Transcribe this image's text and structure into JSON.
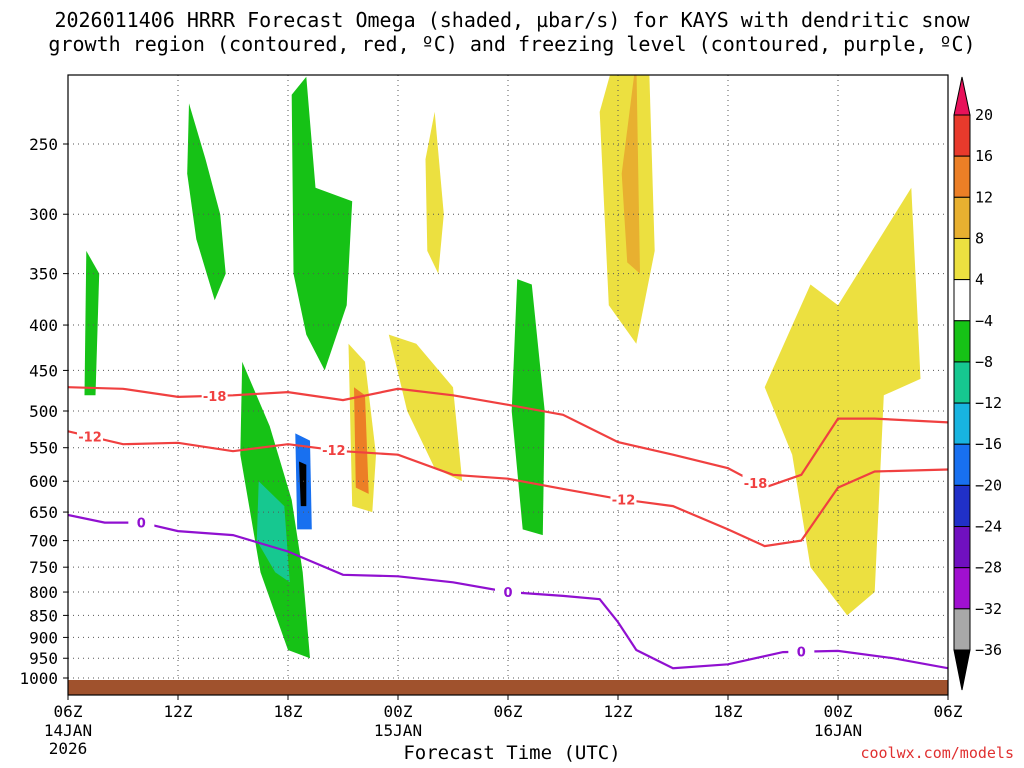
{
  "title_line1": "2026011406 HRRR Forecast Omega (shaded, µbar/s) for KAYS with dendritic snow",
  "title_line2": "growth region (contoured, red, ºC) and freezing level (contoured, purple, ºC)",
  "footer": "coolwx.com/models",
  "chart_data": {
    "type": "heatmap",
    "title": "2026011406 HRRR Forecast Omega (shaded, µbar/s) for KAYS with dendritic snow growth region (contoured, red, ºC) and freezing level (contoured, purple, ºC)",
    "xlabel": "Forecast Time (UTC)",
    "ylabel": "",
    "x_range_hours": [
      0,
      48
    ],
    "x_ticks": [
      {
        "hour": 0,
        "label": "06Z",
        "sub1": "14JAN",
        "sub2": "2026"
      },
      {
        "hour": 6,
        "label": "12Z",
        "sub1": "",
        "sub2": ""
      },
      {
        "hour": 12,
        "label": "18Z",
        "sub1": "",
        "sub2": ""
      },
      {
        "hour": 18,
        "label": "00Z",
        "sub1": "15JAN",
        "sub2": ""
      },
      {
        "hour": 24,
        "label": "06Z",
        "sub1": "",
        "sub2": ""
      },
      {
        "hour": 30,
        "label": "12Z",
        "sub1": "",
        "sub2": ""
      },
      {
        "hour": 36,
        "label": "18Z",
        "sub1": "",
        "sub2": ""
      },
      {
        "hour": 42,
        "label": "00Z",
        "sub1": "16JAN",
        "sub2": ""
      },
      {
        "hour": 48,
        "label": "06Z",
        "sub1": "",
        "sub2": ""
      }
    ],
    "y_ticks": [
      250,
      300,
      350,
      400,
      450,
      500,
      550,
      600,
      650,
      700,
      750,
      800,
      850,
      900,
      950,
      1000
    ],
    "y_range_hPa": [
      200,
      1000
    ],
    "colorbar": {
      "labels": [
        "20",
        "16",
        "12",
        "8",
        "4",
        "−4",
        "−8",
        "−12",
        "−16",
        "−20",
        "−24",
        "−28",
        "−32",
        "−36"
      ],
      "colors": [
        "#e8125a",
        "#e83a2c",
        "#ec7f26",
        "#e8b030",
        "#ece040",
        "#ffffff",
        "#16c216",
        "#16c890",
        "#18b4e0",
        "#1870f0",
        "#2030c8",
        "#7010c0",
        "#a010d0",
        "#a8a8a8",
        "#000000"
      ]
    },
    "dgz_contours": [
      {
        "label": "-18",
        "color": "#f04040",
        "hours": [
          0,
          3,
          6,
          9,
          12,
          15,
          18,
          21,
          24,
          27,
          30,
          33,
          36,
          38,
          40,
          42,
          44,
          48
        ],
        "pressure": [
          470,
          472,
          482,
          480,
          476,
          486,
          472,
          480,
          492,
          505,
          542,
          560,
          580,
          610,
          590,
          510,
          510,
          515
        ]
      },
      {
        "label": "-12",
        "color": "#f04040",
        "hours": [
          0,
          3,
          6,
          9,
          12,
          15,
          18,
          21,
          24,
          27,
          30,
          33,
          36,
          38,
          40,
          42,
          44,
          48
        ],
        "pressure": [
          527,
          545,
          543,
          555,
          545,
          555,
          560,
          590,
          596,
          612,
          628,
          640,
          680,
          710,
          700,
          610,
          585,
          582
        ]
      }
    ],
    "freezing_contour": {
      "label": "0",
      "color": "#9010d0",
      "hours": [
        0,
        2,
        4,
        6,
        9,
        12,
        15,
        18,
        21,
        24,
        27,
        29,
        30,
        31,
        33,
        36,
        39,
        42,
        45,
        48
      ],
      "pressure": [
        655,
        668,
        668,
        683,
        690,
        720,
        765,
        768,
        780,
        800,
        808,
        815,
        865,
        930,
        975,
        965,
        935,
        932,
        950,
        975
      ]
    },
    "omega_regions": [
      {
        "name": "green-upper-12z",
        "value": -6,
        "color": "#16c216",
        "points": [
          [
            6.6,
            225
          ],
          [
            7.5,
            260
          ],
          [
            8.3,
            300
          ],
          [
            8.6,
            350
          ],
          [
            8.0,
            375
          ],
          [
            7.0,
            320
          ],
          [
            6.5,
            270
          ]
        ]
      },
      {
        "name": "green-column-18z",
        "value": -6,
        "color": "#16c216",
        "points": [
          [
            12.2,
            220
          ],
          [
            13.0,
            210
          ],
          [
            13.5,
            280
          ],
          [
            15.5,
            290
          ],
          [
            15.2,
            380
          ],
          [
            14.0,
            450
          ],
          [
            13.0,
            410
          ],
          [
            12.3,
            350
          ]
        ]
      },
      {
        "name": "green-low-15z",
        "value": -8,
        "color": "#16c216",
        "points": [
          [
            9.5,
            440
          ],
          [
            11.0,
            520
          ],
          [
            12.2,
            630
          ],
          [
            12.8,
            760
          ],
          [
            13.2,
            950
          ],
          [
            12.0,
            930
          ],
          [
            10.5,
            760
          ],
          [
            9.4,
            560
          ]
        ]
      },
      {
        "name": "teal-low-16z",
        "value": -12,
        "color": "#16c890",
        "points": [
          [
            10.4,
            600
          ],
          [
            11.8,
            640
          ],
          [
            12.1,
            780
          ],
          [
            11.3,
            760
          ],
          [
            10.3,
            700
          ]
        ]
      },
      {
        "name": "core-18z",
        "value": -20,
        "color": "#1870f0",
        "points": [
          [
            12.4,
            530
          ],
          [
            13.2,
            540
          ],
          [
            13.3,
            680
          ],
          [
            12.5,
            680
          ]
        ]
      },
      {
        "name": "core-dark-18z",
        "value": -36,
        "color": "#000000",
        "points": [
          [
            12.6,
            570
          ],
          [
            13.0,
            575
          ],
          [
            13.0,
            640
          ],
          [
            12.7,
            640
          ]
        ]
      },
      {
        "name": "green-09z",
        "value": -6,
        "color": "#16c216",
        "points": [
          [
            24.5,
            355
          ],
          [
            25.3,
            360
          ],
          [
            26.0,
            500
          ],
          [
            25.9,
            690
          ],
          [
            24.8,
            680
          ],
          [
            24.2,
            500
          ]
        ]
      },
      {
        "name": "green-small",
        "value": -6,
        "color": "#16c216",
        "points": [
          [
            1.0,
            330
          ],
          [
            1.7,
            350
          ],
          [
            1.5,
            480
          ],
          [
            0.9,
            480
          ]
        ]
      },
      {
        "name": "yellow-12z",
        "value": 6,
        "color": "#ece040",
        "points": [
          [
            29.0,
            230
          ],
          [
            31.5,
            150
          ],
          [
            32.0,
            330
          ],
          [
            31.0,
            420
          ],
          [
            29.5,
            380
          ]
        ]
      },
      {
        "name": "orange-12z",
        "value": 10,
        "color": "#e8b030",
        "points": [
          [
            30.2,
            270
          ],
          [
            31.0,
            200
          ],
          [
            31.2,
            350
          ],
          [
            30.5,
            340
          ]
        ]
      },
      {
        "name": "yellow-00z16",
        "value": 6,
        "color": "#ece040",
        "points": [
          [
            38.0,
            470
          ],
          [
            40.5,
            360
          ],
          [
            42.0,
            380
          ],
          [
            46.0,
            280
          ],
          [
            46.5,
            460
          ],
          [
            44.5,
            480
          ],
          [
            44.0,
            800
          ],
          [
            42.5,
            850
          ],
          [
            40.5,
            750
          ],
          [
            39.5,
            560
          ]
        ]
      },
      {
        "name": "yellow-21z",
        "value": 6,
        "color": "#ece040",
        "points": [
          [
            15.3,
            420
          ],
          [
            16.2,
            440
          ],
          [
            16.8,
            560
          ],
          [
            16.6,
            650
          ],
          [
            15.5,
            640
          ]
        ]
      },
      {
        "name": "orange-21z",
        "value": 10,
        "color": "#ec7f26",
        "points": [
          [
            15.6,
            470
          ],
          [
            16.2,
            480
          ],
          [
            16.4,
            620
          ],
          [
            15.7,
            610
          ]
        ]
      },
      {
        "name": "yellow-00z",
        "value": 6,
        "color": "#ece040",
        "points": [
          [
            17.5,
            410
          ],
          [
            19.0,
            420
          ],
          [
            21.0,
            470
          ],
          [
            21.5,
            600
          ],
          [
            20.0,
            580
          ],
          [
            18.5,
            500
          ]
        ]
      },
      {
        "name": "yellow-upper-03z",
        "value": 6,
        "color": "#ece040",
        "points": [
          [
            19.5,
            260
          ],
          [
            20.0,
            230
          ],
          [
            20.5,
            300
          ],
          [
            20.2,
            350
          ],
          [
            19.6,
            330
          ]
        ]
      }
    ]
  }
}
